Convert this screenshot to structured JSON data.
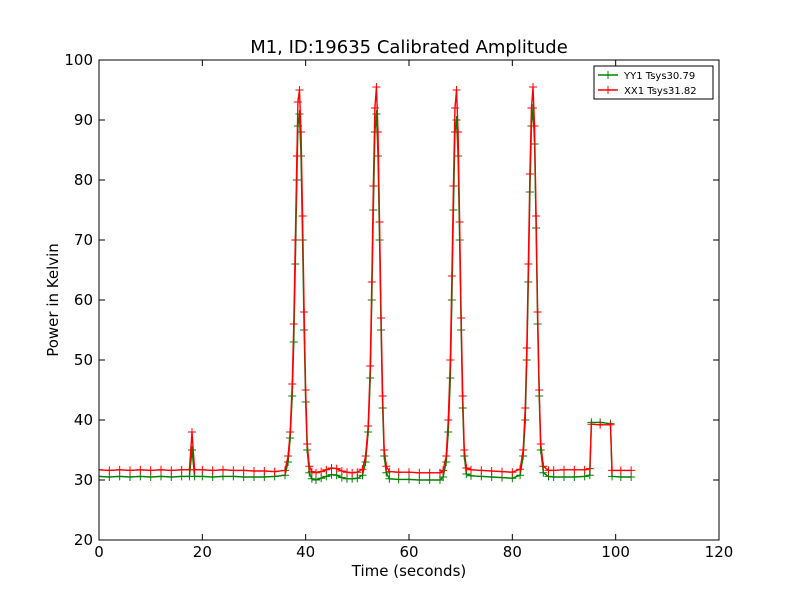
{
  "chart_data": {
    "type": "line",
    "title": "M1, ID:19635 Calibrated Amplitude",
    "xlabel": "Time (seconds)",
    "ylabel": "Power in Kelvin",
    "xlim": [
      0,
      120
    ],
    "ylim": [
      20,
      100
    ],
    "xticks": [
      "0",
      "20",
      "40",
      "60",
      "80",
      "100",
      "120"
    ],
    "yticks": [
      "20",
      "30",
      "40",
      "50",
      "60",
      "70",
      "80",
      "90",
      "100"
    ],
    "grid": false,
    "legend_position": "top-right",
    "marker": "+",
    "series": [
      {
        "name": "YY1 Tsys30.79",
        "color": "#008000",
        "points": [
          [
            0,
            30.6
          ],
          [
            2,
            30.5
          ],
          [
            4,
            30.6
          ],
          [
            6,
            30.5
          ],
          [
            8,
            30.6
          ],
          [
            10,
            30.5
          ],
          [
            12,
            30.6
          ],
          [
            14,
            30.5
          ],
          [
            16,
            30.6
          ],
          [
            17.5,
            30.6
          ],
          [
            18,
            35
          ],
          [
            18.5,
            30.6
          ],
          [
            20,
            30.6
          ],
          [
            22,
            30.5
          ],
          [
            24,
            30.6
          ],
          [
            26,
            30.6
          ],
          [
            28,
            30.5
          ],
          [
            30,
            30.5
          ],
          [
            32,
            30.5
          ],
          [
            34,
            30.6
          ],
          [
            36,
            30.8
          ],
          [
            36.6,
            33
          ],
          [
            37,
            37
          ],
          [
            37.4,
            44
          ],
          [
            37.7,
            53
          ],
          [
            38,
            66
          ],
          [
            38.3,
            80
          ],
          [
            38.5,
            89
          ],
          [
            38.8,
            91
          ],
          [
            39.1,
            84
          ],
          [
            39.4,
            70
          ],
          [
            39.7,
            55
          ],
          [
            40,
            43
          ],
          [
            40.3,
            35
          ],
          [
            40.7,
            31.2
          ],
          [
            41.2,
            30.2
          ],
          [
            42,
            30
          ],
          [
            43,
            30.3
          ],
          [
            44,
            30.6
          ],
          [
            45,
            30.9
          ],
          [
            46,
            30.8
          ],
          [
            47,
            30.4
          ],
          [
            48,
            30.2
          ],
          [
            49,
            30.2
          ],
          [
            50,
            30.3
          ],
          [
            51,
            30.8
          ],
          [
            51.6,
            33
          ],
          [
            52.1,
            38
          ],
          [
            52.5,
            47
          ],
          [
            52.8,
            60
          ],
          [
            53.1,
            75
          ],
          [
            53.4,
            88
          ],
          [
            53.7,
            91
          ],
          [
            54,
            84
          ],
          [
            54.3,
            70
          ],
          [
            54.6,
            55
          ],
          [
            54.9,
            42
          ],
          [
            55.2,
            34
          ],
          [
            55.6,
            31.2
          ],
          [
            56.2,
            30.2
          ],
          [
            58,
            30.1
          ],
          [
            60,
            30.1
          ],
          [
            62,
            30
          ],
          [
            64,
            30
          ],
          [
            66,
            30
          ],
          [
            66.6,
            30.5
          ],
          [
            67.2,
            33
          ],
          [
            67.6,
            38
          ],
          [
            68,
            47
          ],
          [
            68.3,
            60
          ],
          [
            68.6,
            75
          ],
          [
            68.9,
            88
          ],
          [
            69.2,
            90
          ],
          [
            69.5,
            84
          ],
          [
            69.8,
            70
          ],
          [
            70.1,
            55
          ],
          [
            70.4,
            42
          ],
          [
            70.7,
            34
          ],
          [
            71.1,
            31
          ],
          [
            72,
            30.7
          ],
          [
            74,
            30.6
          ],
          [
            76,
            30.5
          ],
          [
            78,
            30.4
          ],
          [
            80,
            30.3
          ],
          [
            81.5,
            30.8
          ],
          [
            82.1,
            34
          ],
          [
            82.5,
            40
          ],
          [
            82.8,
            50
          ],
          [
            83.1,
            63
          ],
          [
            83.4,
            78
          ],
          [
            83.7,
            89
          ],
          [
            84,
            92
          ],
          [
            84.3,
            86
          ],
          [
            84.6,
            72
          ],
          [
            84.9,
            56
          ],
          [
            85.2,
            44
          ],
          [
            85.5,
            35
          ],
          [
            86,
            31.2
          ],
          [
            87,
            30.6
          ],
          [
            88,
            30.5
          ],
          [
            90,
            30.5
          ],
          [
            92,
            30.5
          ],
          [
            94,
            30.6
          ],
          [
            95,
            30.8
          ],
          [
            95.3,
            39.6
          ],
          [
            97,
            39.6
          ],
          [
            99,
            39.4
          ],
          [
            99.3,
            30.6
          ],
          [
            101,
            30.5
          ],
          [
            103,
            30.5
          ]
        ]
      },
      {
        "name": "XX1 Tsys31.82",
        "color": "#ff0000",
        "points": [
          [
            0,
            31.7
          ],
          [
            2,
            31.6
          ],
          [
            4,
            31.7
          ],
          [
            6,
            31.6
          ],
          [
            8,
            31.7
          ],
          [
            10,
            31.6
          ],
          [
            12,
            31.7
          ],
          [
            14,
            31.6
          ],
          [
            16,
            31.7
          ],
          [
            17.5,
            31.7
          ],
          [
            18,
            38
          ],
          [
            18.5,
            31.7
          ],
          [
            20,
            31.7
          ],
          [
            22,
            31.6
          ],
          [
            24,
            31.7
          ],
          [
            26,
            31.6
          ],
          [
            28,
            31.6
          ],
          [
            30,
            31.5
          ],
          [
            32,
            31.5
          ],
          [
            34,
            31.4
          ],
          [
            36,
            31.6
          ],
          [
            36.6,
            34
          ],
          [
            37,
            38
          ],
          [
            37.4,
            46
          ],
          [
            37.7,
            56
          ],
          [
            38,
            70
          ],
          [
            38.3,
            84
          ],
          [
            38.5,
            93
          ],
          [
            38.8,
            95
          ],
          [
            39.1,
            88
          ],
          [
            39.4,
            74
          ],
          [
            39.7,
            58
          ],
          [
            40,
            45
          ],
          [
            40.3,
            36
          ],
          [
            40.7,
            32.3
          ],
          [
            41.2,
            31.4
          ],
          [
            42,
            31.2
          ],
          [
            43,
            31.4
          ],
          [
            44,
            31.7
          ],
          [
            45,
            32
          ],
          [
            46,
            31.9
          ],
          [
            47,
            31.5
          ],
          [
            48,
            31.3
          ],
          [
            49,
            31.2
          ],
          [
            50,
            31.3
          ],
          [
            51,
            31.8
          ],
          [
            51.6,
            34
          ],
          [
            52.1,
            39
          ],
          [
            52.5,
            49
          ],
          [
            52.8,
            63
          ],
          [
            53.1,
            79
          ],
          [
            53.4,
            92
          ],
          [
            53.7,
            95.5
          ],
          [
            54,
            88
          ],
          [
            54.3,
            73
          ],
          [
            54.6,
            57
          ],
          [
            54.9,
            44
          ],
          [
            55.2,
            35
          ],
          [
            55.6,
            32.3
          ],
          [
            56.2,
            31.4
          ],
          [
            58,
            31.3
          ],
          [
            60,
            31.3
          ],
          [
            62,
            31.2
          ],
          [
            64,
            31.2
          ],
          [
            66,
            31.2
          ],
          [
            66.6,
            31.6
          ],
          [
            67.2,
            34
          ],
          [
            67.6,
            40
          ],
          [
            68,
            50
          ],
          [
            68.3,
            64
          ],
          [
            68.6,
            79
          ],
          [
            68.9,
            92
          ],
          [
            69.2,
            95
          ],
          [
            69.5,
            88
          ],
          [
            69.8,
            73
          ],
          [
            70.1,
            57
          ],
          [
            70.4,
            44
          ],
          [
            70.7,
            35
          ],
          [
            71.1,
            32
          ],
          [
            72,
            31.7
          ],
          [
            74,
            31.6
          ],
          [
            76,
            31.5
          ],
          [
            78,
            31.4
          ],
          [
            80,
            31.3
          ],
          [
            81.5,
            31.8
          ],
          [
            82.1,
            35
          ],
          [
            82.5,
            42
          ],
          [
            82.8,
            52
          ],
          [
            83.1,
            66
          ],
          [
            83.4,
            81
          ],
          [
            83.7,
            92
          ],
          [
            84,
            95.5
          ],
          [
            84.3,
            89
          ],
          [
            84.6,
            74
          ],
          [
            84.9,
            58
          ],
          [
            85.2,
            45
          ],
          [
            85.5,
            36
          ],
          [
            86,
            32.3
          ],
          [
            87,
            31.6
          ],
          [
            88,
            31.6
          ],
          [
            90,
            31.7
          ],
          [
            92,
            31.7
          ],
          [
            94,
            31.7
          ],
          [
            95,
            31.9
          ],
          [
            95.3,
            39.3
          ],
          [
            97,
            39.2
          ],
          [
            99,
            39.2
          ],
          [
            99.3,
            31.6
          ],
          [
            101,
            31.6
          ],
          [
            103,
            31.6
          ]
        ]
      }
    ]
  }
}
